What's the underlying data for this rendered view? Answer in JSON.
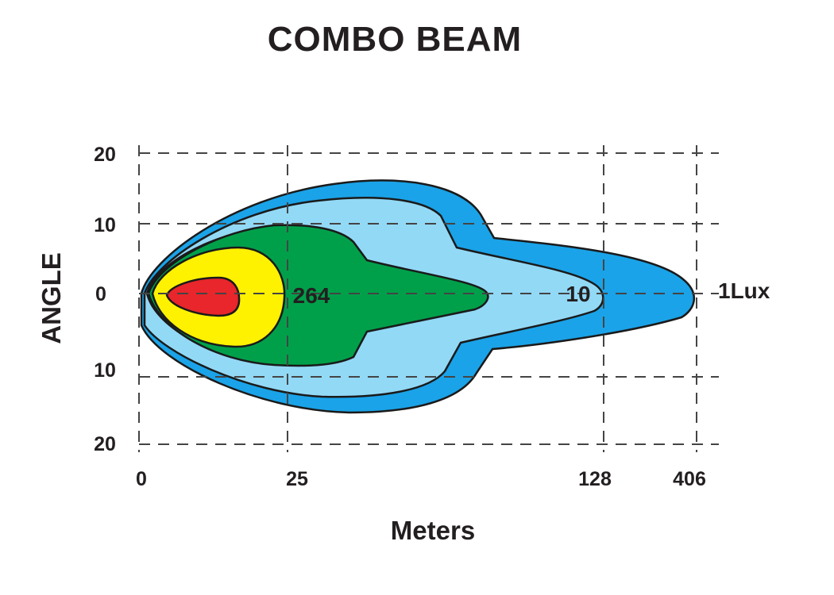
{
  "chart_data": {
    "type": "beam-pattern",
    "title": "COMBO  BEAM",
    "xlabel": "Meters",
    "ylabel": "ANGLE",
    "x_ticks": [
      "0",
      "25",
      "128",
      "406"
    ],
    "y_ticks": [
      "20",
      "10",
      "0",
      "10",
      "20"
    ],
    "grid": true,
    "contour_labels": [
      {
        "text": "264",
        "at": "25"
      },
      {
        "text": "10",
        "at": "128"
      },
      {
        "text": "1Lux",
        "at": "406"
      }
    ],
    "colors": {
      "red": "#e8262b",
      "yellow": "#fff200",
      "green": "#00a04a",
      "light_blue": "#92d9f6",
      "blue": "#1aa3e8",
      "pale": "#e8dc9c"
    }
  }
}
